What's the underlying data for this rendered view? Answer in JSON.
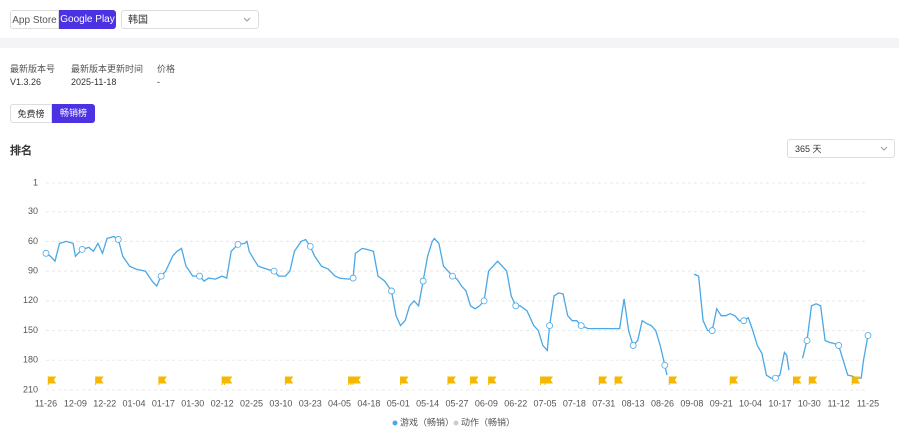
{
  "header": {
    "stores": [
      "App Store",
      "Google Play"
    ],
    "region": "韩国"
  },
  "info": {
    "labels": [
      "最新版本号",
      "最新版本更新时间",
      "价格"
    ],
    "values": [
      "V1.3.26",
      "2025-11-18",
      "-"
    ]
  },
  "tabs": [
    "免费榜",
    "畅销榜"
  ],
  "section_title": "排名",
  "range_select": "365 天",
  "chart_data": {
    "type": "line",
    "inverted": true,
    "grid": true,
    "x": [
      0,
      2,
      4,
      6,
      9,
      12,
      13,
      16,
      19,
      21,
      23,
      25,
      27,
      30,
      32,
      34,
      37,
      40,
      44,
      47,
      49,
      51,
      53,
      56,
      58,
      60,
      62,
      65,
      68,
      70,
      72,
      75,
      78,
      80,
      82,
      85,
      88,
      89,
      90,
      92,
      94,
      98,
      101,
      103,
      106,
      108,
      110,
      113,
      115,
      117,
      119,
      122,
      125,
      128,
      130,
      134,
      136,
      137,
      140,
      142,
      145,
      147,
      150,
      153,
      155,
      157,
      159,
      161,
      163,
      165,
      167,
      169,
      171,
      172,
      174,
      176,
      178,
      180,
      182,
      184,
      186,
      188,
      190,
      192,
      194,
      196,
      198,
      200,
      202,
      204,
      206,
      208,
      210,
      213,
      216,
      218,
      220,
      222,
      223,
      225,
      227,
      229,
      231,
      233,
      235,
      237,
      240,
      245,
      250,
      254,
      256,
      258,
      260,
      262,
      264,
      266,
      268,
      270,
      272,
      274,
      275,
      280,
      287,
      289,
      291,
      293,
      295,
      297,
      299,
      301,
      303,
      305,
      307,
      309,
      311,
      313,
      315,
      317,
      319,
      321,
      323,
      325,
      327,
      328,
      329,
      332,
      335,
      337,
      339,
      341,
      343,
      345,
      347,
      349,
      351,
      353,
      355,
      357,
      359,
      361,
      362,
      364
    ],
    "series": [
      {
        "name": "游戏（畅销）",
        "color": "#4aa8e6",
        "values": [
          72,
          75,
          80,
          62,
          60,
          62,
          75,
          68,
          66,
          70,
          62,
          72,
          57,
          55,
          58,
          75,
          85,
          88,
          90,
          100,
          105,
          95,
          90,
          75,
          70,
          67,
          85,
          95,
          95,
          100,
          97,
          98,
          95,
          97,
          70,
          63,
          62,
          60,
          70,
          78,
          85,
          88,
          90,
          95,
          95,
          90,
          70,
          60,
          58,
          65,
          75,
          85,
          88,
          95,
          97,
          98,
          97,
          72,
          67,
          68,
          70,
          95,
          100,
          110,
          135,
          145,
          140,
          125,
          120,
          125,
          100,
          75,
          60,
          57,
          62,
          85,
          90,
          95,
          98,
          105,
          110,
          125,
          128,
          125,
          120,
          90,
          85,
          80,
          85,
          90,
          115,
          125,
          125,
          130,
          145,
          150,
          165,
          170,
          145,
          115,
          112,
          113,
          135,
          140,
          140,
          145,
          148,
          148,
          148,
          148,
          118,
          150,
          165,
          160,
          140,
          143,
          145,
          150,
          165,
          185,
          195,
          null,
          93,
          95,
          140,
          150,
          150,
          128,
          135,
          135,
          133,
          135,
          140,
          140,
          137,
          150,
          165,
          173,
          195,
          198,
          198,
          195,
          172,
          175,
          190,
          null,
          178,
          160,
          125,
          123,
          125,
          160,
          162,
          163,
          165,
          180,
          195,
          196,
          198,
          198,
          180,
          155
        ]
      }
    ],
    "inactive_series": [
      {
        "name": "动作（畅销）",
        "color": "#cccccc"
      }
    ],
    "flags_x": [
      1,
      22,
      50,
      78,
      79,
      106,
      134,
      135,
      136,
      157,
      178,
      188,
      196,
      219,
      221,
      245,
      252,
      276,
      303,
      331,
      338,
      357
    ],
    "flag_color": "#f5b800",
    "xlim": [
      0,
      364
    ],
    "xticks": [
      {
        "value": 0,
        "label": "11-26"
      },
      {
        "value": 13,
        "label": "12-09"
      },
      {
        "value": 26,
        "label": "12-22"
      },
      {
        "value": 39,
        "label": "01-04"
      },
      {
        "value": 52,
        "label": "01-17"
      },
      {
        "value": 65,
        "label": "01-30"
      },
      {
        "value": 78,
        "label": "02-12"
      },
      {
        "value": 91,
        "label": "02-25"
      },
      {
        "value": 104,
        "label": "03-10"
      },
      {
        "value": 117,
        "label": "03-23"
      },
      {
        "value": 130,
        "label": "04-05"
      },
      {
        "value": 143,
        "label": "04-18"
      },
      {
        "value": 156,
        "label": "05-01"
      },
      {
        "value": 169,
        "label": "05-14"
      },
      {
        "value": 182,
        "label": "05-27"
      },
      {
        "value": 195,
        "label": "06-09"
      },
      {
        "value": 208,
        "label": "06-22"
      },
      {
        "value": 221,
        "label": "07-05"
      },
      {
        "value": 234,
        "label": "07-18"
      },
      {
        "value": 247,
        "label": "07-31"
      },
      {
        "value": 260,
        "label": "08-13"
      },
      {
        "value": 273,
        "label": "08-26"
      },
      {
        "value": 286,
        "label": "09-08"
      },
      {
        "value": 299,
        "label": "09-21"
      },
      {
        "value": 312,
        "label": "10-04"
      },
      {
        "value": 325,
        "label": "10-17"
      },
      {
        "value": 338,
        "label": "10-30"
      },
      {
        "value": 351,
        "label": "11-12"
      },
      {
        "value": 364,
        "label": "11-25"
      }
    ],
    "ylim": [
      1,
      210
    ],
    "yticks": [
      1,
      30,
      60,
      90,
      120,
      150,
      180,
      210
    ]
  }
}
